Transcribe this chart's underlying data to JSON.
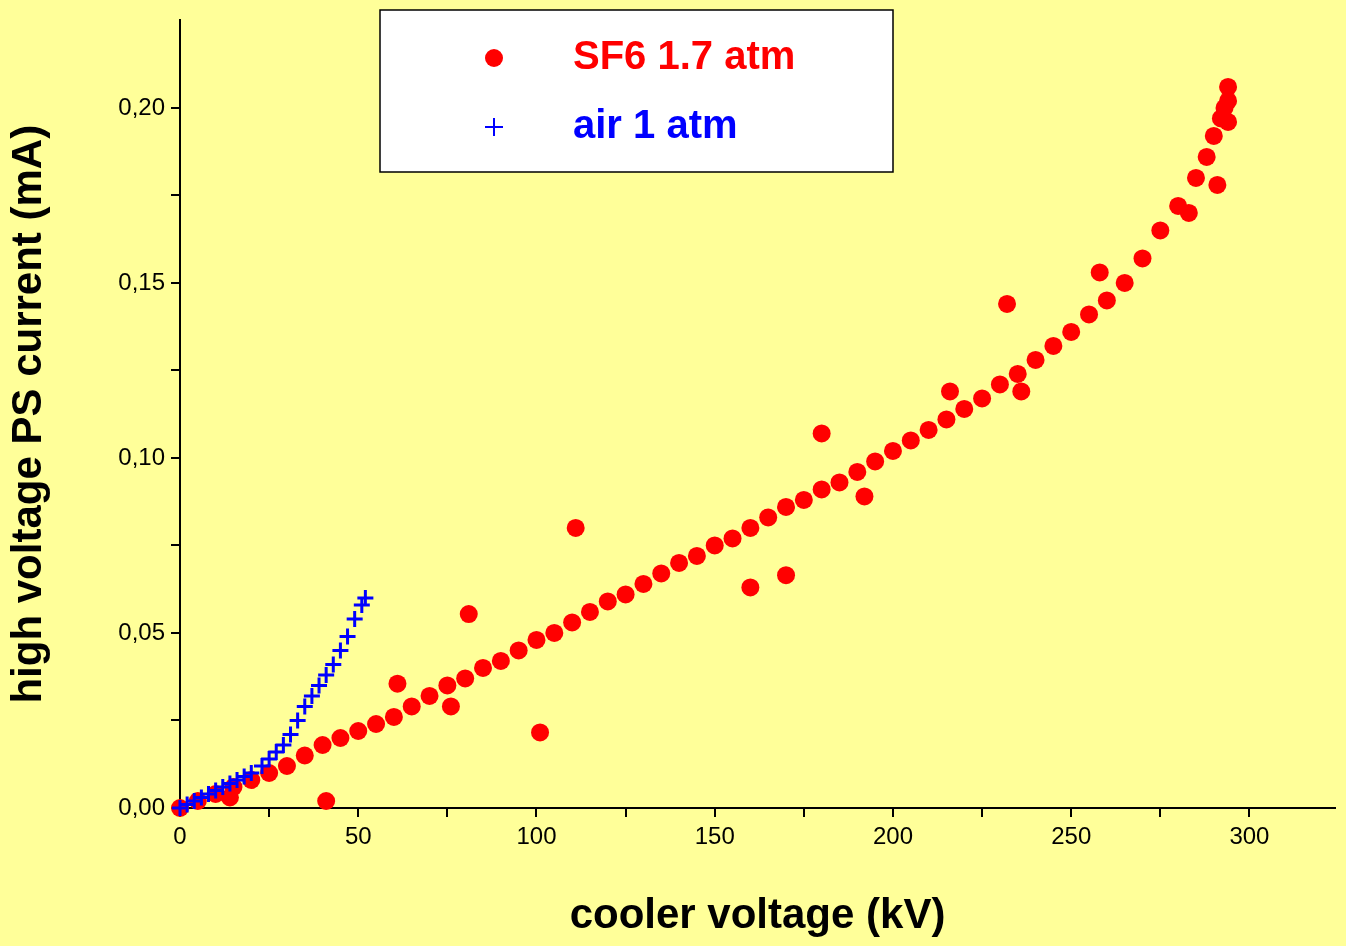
{
  "chart_data": {
    "type": "scatter",
    "xlabel": "cooler voltage (kV)",
    "ylabel": "high voltage PS current (mA)",
    "xlim": [
      0,
      324
    ],
    "ylim": [
      0,
      0.225
    ],
    "xticks": [
      0,
      {
        "value": 25,
        "label": null
      },
      50,
      {
        "value": 75,
        "label": null
      },
      100,
      {
        "value": 125,
        "label": null
      },
      150,
      {
        "value": 175,
        "label": null
      },
      200,
      {
        "value": 225,
        "label": null
      },
      250,
      {
        "value": 275,
        "label": null
      },
      300
    ],
    "yticks": [
      {
        "value": 0,
        "label": "0,00"
      },
      {
        "value": 0.025,
        "label": null
      },
      {
        "value": 0.05,
        "label": "0,05"
      },
      {
        "value": 0.075,
        "label": null
      },
      {
        "value": 0.1,
        "label": "0,10"
      },
      {
        "value": 0.125,
        "label": null
      },
      {
        "value": 0.15,
        "label": "0,15"
      },
      {
        "value": 0.175,
        "label": null
      },
      {
        "value": 0.2,
        "label": "0,20"
      }
    ],
    "grid": false,
    "legend": "top",
    "series": [
      {
        "name": "SF6 1.7 atm",
        "color": "#ff0000",
        "marker": "circle",
        "x": [
          0,
          5,
          10,
          14,
          15,
          20,
          25,
          30,
          35,
          40,
          41,
          45,
          50,
          55,
          60,
          61,
          65,
          70,
          75,
          76,
          80,
          81,
          85,
          90,
          95,
          100,
          101,
          105,
          110,
          111,
          115,
          120,
          125,
          130,
          135,
          140,
          145,
          150,
          155,
          160,
          160,
          165,
          170,
          170,
          175,
          180,
          180,
          185,
          190,
          192,
          195,
          200,
          205,
          210,
          215,
          216,
          220,
          225,
          230,
          232,
          235,
          236,
          240,
          245,
          250,
          255,
          258,
          260,
          265,
          270,
          275,
          280,
          283,
          285,
          288,
          290,
          291,
          292,
          293,
          294,
          294,
          294
        ],
        "values": [
          0,
          0.002,
          0.004,
          0.003,
          0.006,
          0.008,
          0.01,
          0.012,
          0.015,
          0.018,
          0.002,
          0.02,
          0.022,
          0.024,
          0.026,
          0.0355,
          0.029,
          0.032,
          0.035,
          0.029,
          0.037,
          0.0554,
          0.04,
          0.042,
          0.045,
          0.048,
          0.0216,
          0.05,
          0.053,
          0.08,
          0.056,
          0.059,
          0.061,
          0.064,
          0.067,
          0.07,
          0.072,
          0.075,
          0.077,
          0.08,
          0.063,
          0.083,
          0.086,
          0.0665,
          0.088,
          0.091,
          0.107,
          0.093,
          0.096,
          0.089,
          0.099,
          0.102,
          0.105,
          0.108,
          0.111,
          0.119,
          0.114,
          0.117,
          0.121,
          0.144,
          0.124,
          0.119,
          0.128,
          0.132,
          0.136,
          0.141,
          0.153,
          0.145,
          0.15,
          0.157,
          0.165,
          0.172,
          0.17,
          0.18,
          0.186,
          0.192,
          0.178,
          0.197,
          0.2,
          0.196,
          0.202,
          0.206
        ]
      },
      {
        "name": "air 1 atm",
        "color": "#0000ff",
        "marker": "cross",
        "x": [
          0,
          2,
          4,
          6,
          8,
          10,
          12,
          14,
          16,
          18,
          20,
          23,
          25,
          27,
          29,
          31,
          33,
          35,
          37,
          39,
          41,
          43,
          45,
          47,
          49,
          51,
          52
        ],
        "values": [
          0,
          0.001,
          0.002,
          0.003,
          0.004,
          0.005,
          0.006,
          0.007,
          0.008,
          0.009,
          0.01,
          0.012,
          0.014,
          0.016,
          0.018,
          0.021,
          0.025,
          0.029,
          0.032,
          0.035,
          0.038,
          0.041,
          0.045,
          0.049,
          0.054,
          0.058,
          0.06
        ]
      }
    ]
  }
}
